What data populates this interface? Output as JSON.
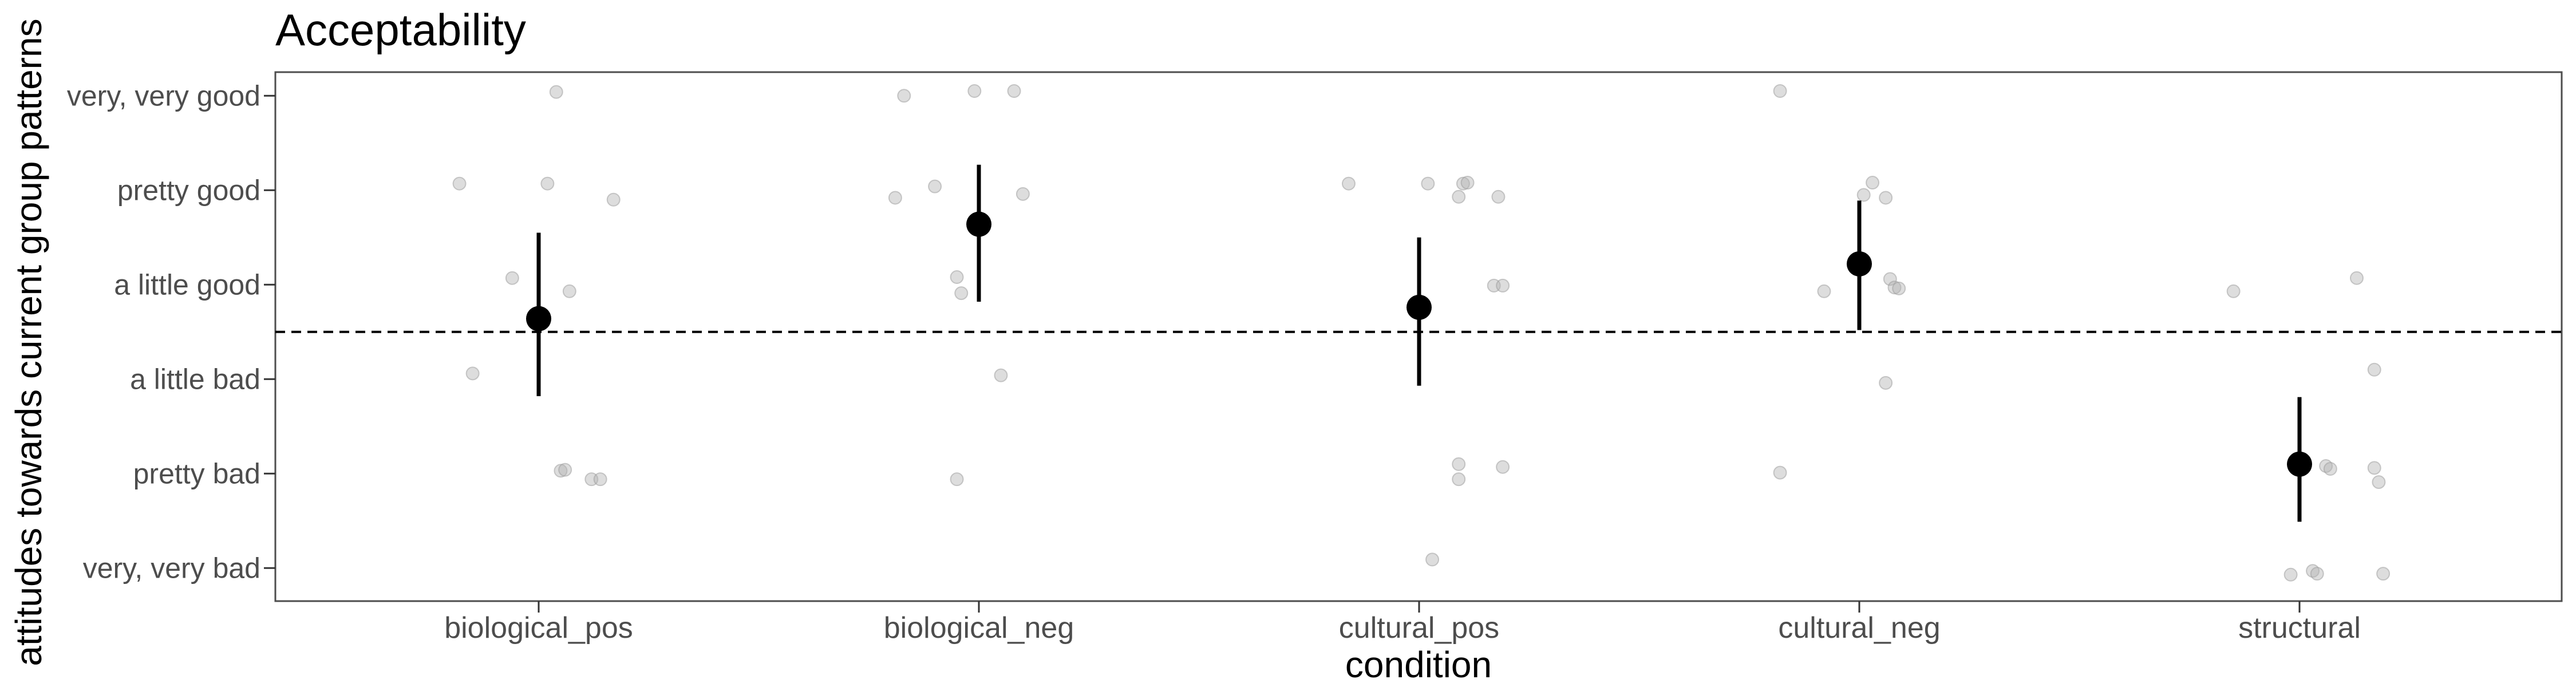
{
  "chart_data": {
    "type": "scatter",
    "title": "Acceptability",
    "xlabel": "condition",
    "ylabel": "attitudes towards current group patterns",
    "categories": [
      "biological_pos",
      "biological_neg",
      "cultural_pos",
      "cultural_neg",
      "structural"
    ],
    "y_levels": [
      "very, very bad",
      "pretty bad",
      "a little bad",
      "a little good",
      "pretty good",
      "very, very good"
    ],
    "ylim": [
      0.65,
      6.25
    ],
    "reference_line": 3.5,
    "grid": false,
    "summary": [
      {
        "category": "biological_pos",
        "mean": 3.64,
        "lower": 2.82,
        "upper": 4.55
      },
      {
        "category": "biological_neg",
        "mean": 4.64,
        "lower": 3.82,
        "upper": 5.27
      },
      {
        "category": "cultural_pos",
        "mean": 3.76,
        "lower": 2.93,
        "upper": 4.5
      },
      {
        "category": "cultural_neg",
        "mean": 4.22,
        "lower": 3.52,
        "upper": 4.89
      },
      {
        "category": "structural",
        "mean": 2.1,
        "lower": 1.49,
        "upper": 2.81
      }
    ],
    "points": [
      {
        "category": "biological_pos",
        "x": -0.18,
        "y": 5.07
      },
      {
        "category": "biological_pos",
        "x": 0.02,
        "y": 5.07
      },
      {
        "category": "biological_pos",
        "x": 0.17,
        "y": 4.9
      },
      {
        "category": "biological_pos",
        "x": 0.04,
        "y": 6.04
      },
      {
        "category": "biological_pos",
        "x": -0.06,
        "y": 4.07
      },
      {
        "category": "biological_pos",
        "x": 0.07,
        "y": 3.93
      },
      {
        "category": "biological_pos",
        "x": -0.15,
        "y": 3.06
      },
      {
        "category": "biological_pos",
        "x": 0.05,
        "y": 2.03
      },
      {
        "category": "biological_pos",
        "x": 0.06,
        "y": 2.04
      },
      {
        "category": "biological_pos",
        "x": 0.12,
        "y": 1.94
      },
      {
        "category": "biological_pos",
        "x": 0.14,
        "y": 1.94
      },
      {
        "category": "biological_neg",
        "x": -0.17,
        "y": 6.0
      },
      {
        "category": "biological_neg",
        "x": -0.01,
        "y": 6.05
      },
      {
        "category": "biological_neg",
        "x": 0.08,
        "y": 6.05
      },
      {
        "category": "biological_neg",
        "x": -0.19,
        "y": 4.92
      },
      {
        "category": "biological_neg",
        "x": -0.1,
        "y": 5.04
      },
      {
        "category": "biological_neg",
        "x": 0.1,
        "y": 4.96
      },
      {
        "category": "biological_neg",
        "x": -0.05,
        "y": 4.08
      },
      {
        "category": "biological_neg",
        "x": -0.04,
        "y": 3.91
      },
      {
        "category": "biological_neg",
        "x": 0.05,
        "y": 3.04
      },
      {
        "category": "biological_neg",
        "x": -0.05,
        "y": 1.94
      },
      {
        "category": "cultural_pos",
        "x": -0.16,
        "y": 5.07
      },
      {
        "category": "cultural_pos",
        "x": 0.02,
        "y": 5.07
      },
      {
        "category": "cultural_pos",
        "x": 0.1,
        "y": 5.07
      },
      {
        "category": "cultural_pos",
        "x": 0.11,
        "y": 5.08
      },
      {
        "category": "cultural_pos",
        "x": 0.09,
        "y": 4.93
      },
      {
        "category": "cultural_pos",
        "x": 0.18,
        "y": 4.93
      },
      {
        "category": "cultural_pos",
        "x": 0.17,
        "y": 3.99
      },
      {
        "category": "cultural_pos",
        "x": 0.19,
        "y": 3.99
      },
      {
        "category": "cultural_pos",
        "x": 0.09,
        "y": 2.1
      },
      {
        "category": "cultural_pos",
        "x": 0.09,
        "y": 1.94
      },
      {
        "category": "cultural_pos",
        "x": 0.19,
        "y": 2.07
      },
      {
        "category": "cultural_pos",
        "x": 0.03,
        "y": 1.09
      },
      {
        "category": "cultural_neg",
        "x": -0.18,
        "y": 6.05
      },
      {
        "category": "cultural_neg",
        "x": 0.03,
        "y": 5.08
      },
      {
        "category": "cultural_neg",
        "x": 0.01,
        "y": 4.95
      },
      {
        "category": "cultural_neg",
        "x": 0.06,
        "y": 4.92
      },
      {
        "category": "cultural_neg",
        "x": 0.07,
        "y": 4.06
      },
      {
        "category": "cultural_neg",
        "x": 0.08,
        "y": 3.97
      },
      {
        "category": "cultural_neg",
        "x": 0.09,
        "y": 3.96
      },
      {
        "category": "cultural_neg",
        "x": -0.08,
        "y": 3.93
      },
      {
        "category": "cultural_neg",
        "x": 0.06,
        "y": 2.96
      },
      {
        "category": "cultural_neg",
        "x": -0.18,
        "y": 2.01
      },
      {
        "category": "structural",
        "x": -0.15,
        "y": 3.93
      },
      {
        "category": "structural",
        "x": 0.13,
        "y": 4.07
      },
      {
        "category": "structural",
        "x": 0.17,
        "y": 3.1
      },
      {
        "category": "structural",
        "x": 0.06,
        "y": 2.08
      },
      {
        "category": "structural",
        "x": 0.07,
        "y": 2.05
      },
      {
        "category": "structural",
        "x": 0.17,
        "y": 2.06
      },
      {
        "category": "structural",
        "x": 0.18,
        "y": 1.91
      },
      {
        "category": "structural",
        "x": -0.02,
        "y": 0.93
      },
      {
        "category": "structural",
        "x": 0.03,
        "y": 0.97
      },
      {
        "category": "structural",
        "x": 0.04,
        "y": 0.94
      },
      {
        "category": "structural",
        "x": 0.19,
        "y": 0.94
      }
    ]
  }
}
